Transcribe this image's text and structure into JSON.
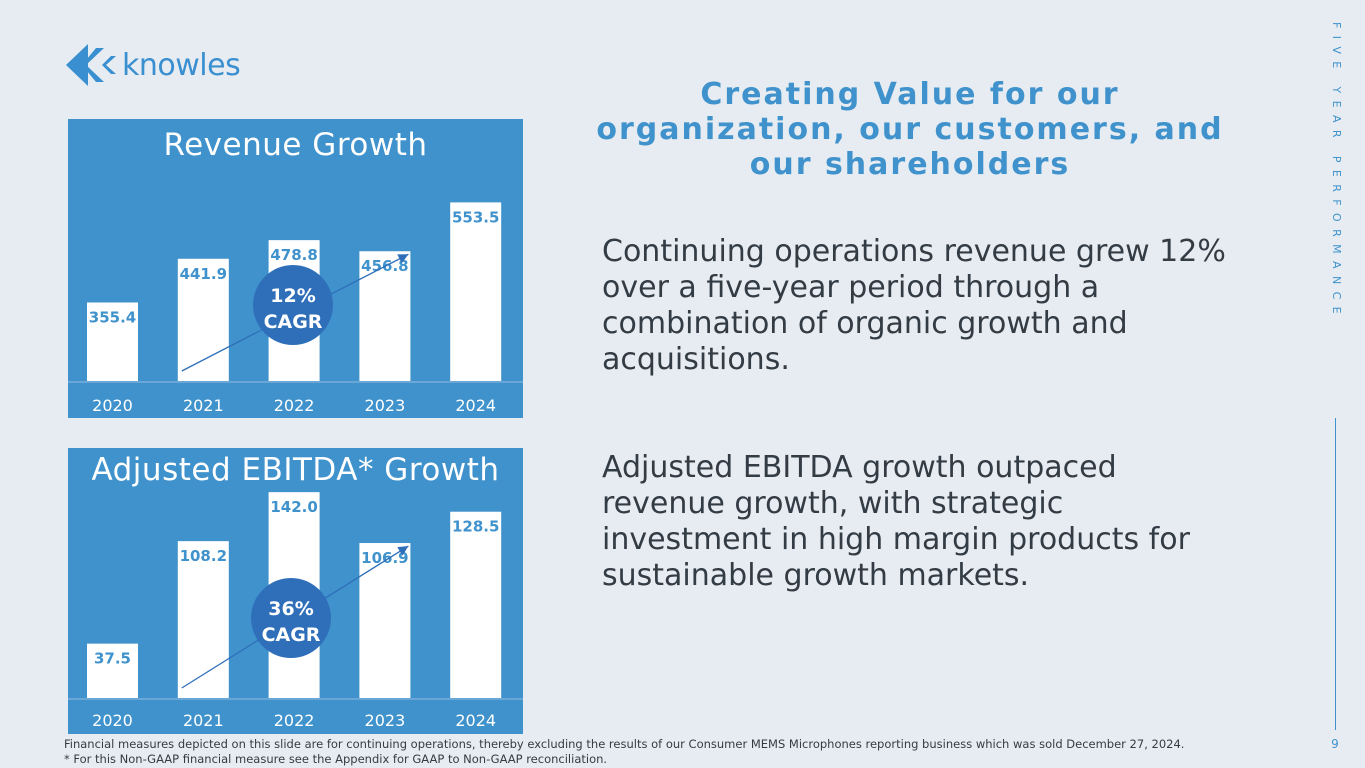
{
  "logo": {
    "text": "knowles"
  },
  "headline": "Creating Value for our organization, our customers, and our shareholders",
  "body": {
    "revenue_text": "Continuing operations revenue grew 12% over a five-year period through a combination of organic growth and acquisitions.",
    "ebitda_text": "Adjusted EBITDA growth outpaced revenue growth, with strategic investment in high margin products for sustainable growth markets."
  },
  "side_label": "FIVE YEAR PERFORMANCE",
  "page_number": "9",
  "footnotes": [
    "Financial measures depicted on this slide are for continuing operations, thereby excluding the results of our Consumer MEMS Microphones reporting business which was sold December 27, 2024.",
    "* For this Non-GAAP financial measure see the Appendix for GAAP to Non-GAAP reconciliation."
  ],
  "colors": {
    "accent": "#3f92cc",
    "bar": "#ffffff",
    "badge": "#2f6fb9",
    "label": "#3f92cc"
  },
  "chart_data": [
    {
      "type": "bar",
      "title": "Revenue Growth",
      "categories": [
        "2020",
        "2021",
        "2022",
        "2023",
        "2024"
      ],
      "values": [
        355.4,
        441.9,
        478.8,
        456.8,
        553.5
      ],
      "value_labels": [
        "355.4",
        "441.9",
        "478.8",
        "456.8",
        "553.5"
      ],
      "cagr_pct": "12%",
      "cagr_label": "CAGR",
      "ylim": [
        200,
        580
      ]
    },
    {
      "type": "bar",
      "title": "Adjusted EBITDA* Growth",
      "categories": [
        "2020",
        "2021",
        "2022",
        "2023",
        "2024"
      ],
      "values": [
        37.5,
        108.2,
        142.0,
        106.9,
        128.5
      ],
      "value_labels": [
        "37.5",
        "108.2",
        "142.0",
        "106.9",
        "128.5"
      ],
      "cagr_pct": "36%",
      "cagr_label": "CAGR",
      "ylim": [
        0,
        149
      ]
    }
  ]
}
